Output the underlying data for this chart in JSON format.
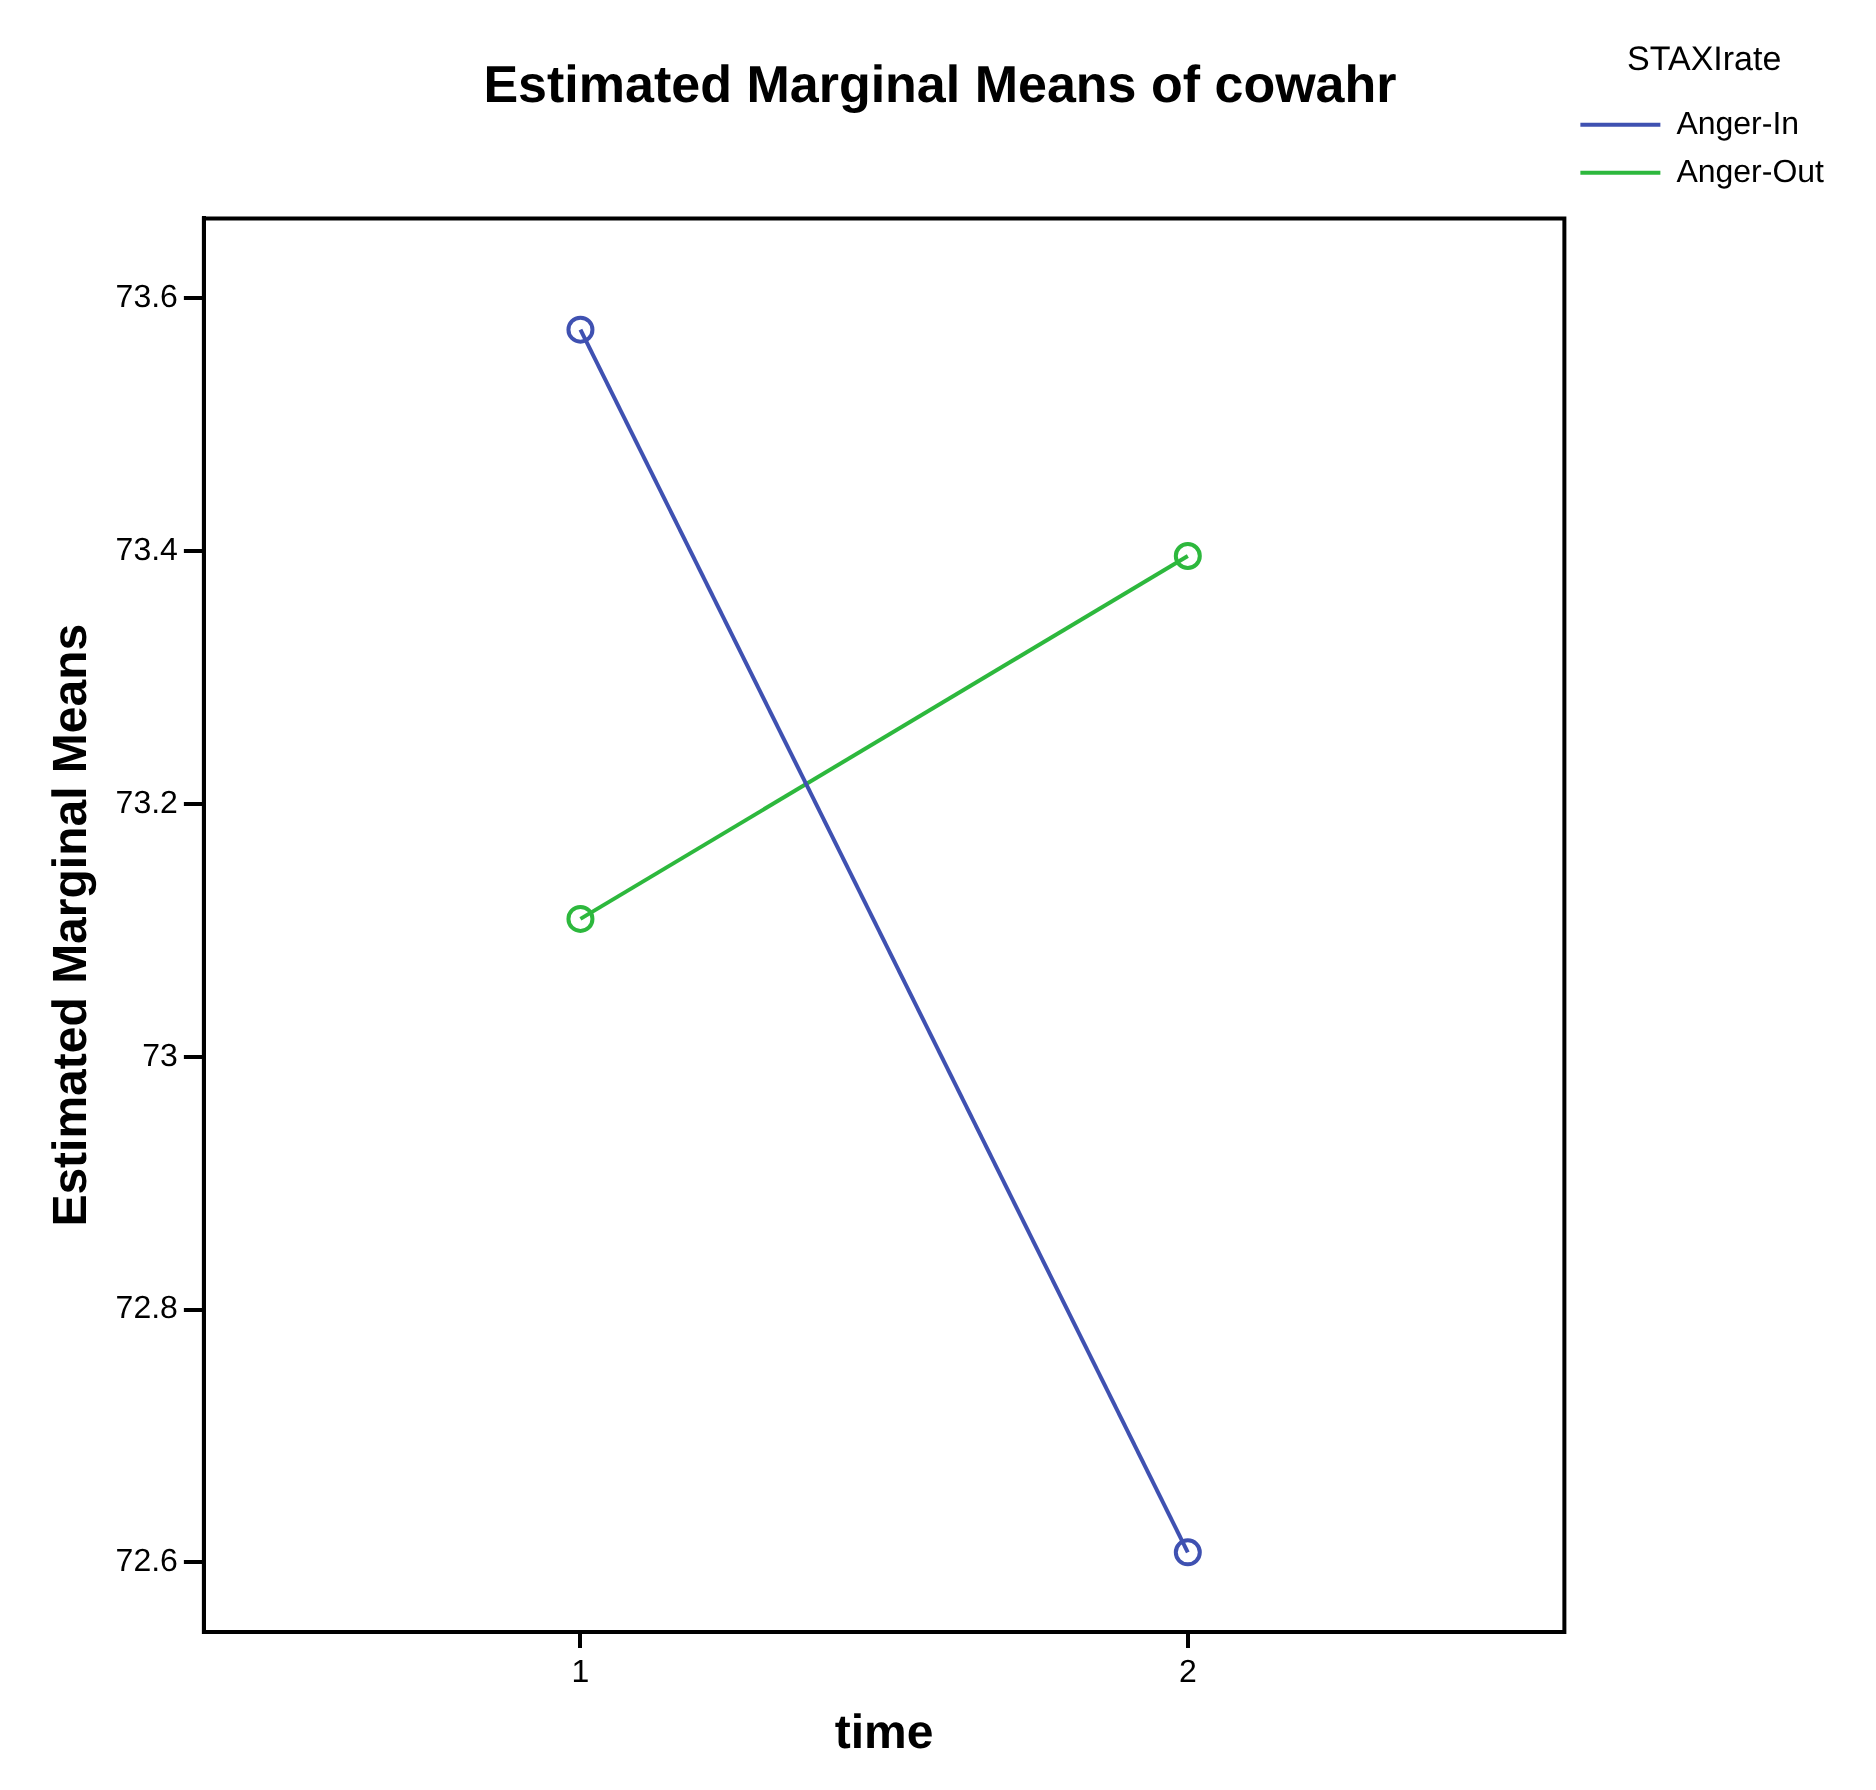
{
  "chart_data": {
    "type": "line",
    "title": "Estimated Marginal Means of cowahr",
    "xlabel": "time",
    "ylabel": "Estimated Marginal Means",
    "legend_title": "STAXIrate",
    "x": [
      1,
      2
    ],
    "xlim": [
      0.38,
      2.62
    ],
    "xticks": [
      1,
      2
    ],
    "ylim": [
      72.545,
      73.663
    ],
    "yticks": [
      72.6,
      72.8,
      {
        "value": 73,
        "label": "73"
      },
      73.2,
      73.4,
      73.6
    ],
    "series": [
      {
        "name": "Anger-In",
        "color": "#3f51b1",
        "values": [
          73.575,
          72.608
        ]
      },
      {
        "name": "Anger-Out",
        "color": "#2db83d",
        "values": [
          73.109,
          73.396
        ]
      }
    ],
    "marker": "circle",
    "line_style": "solid",
    "grid": false,
    "legend": "top right"
  }
}
